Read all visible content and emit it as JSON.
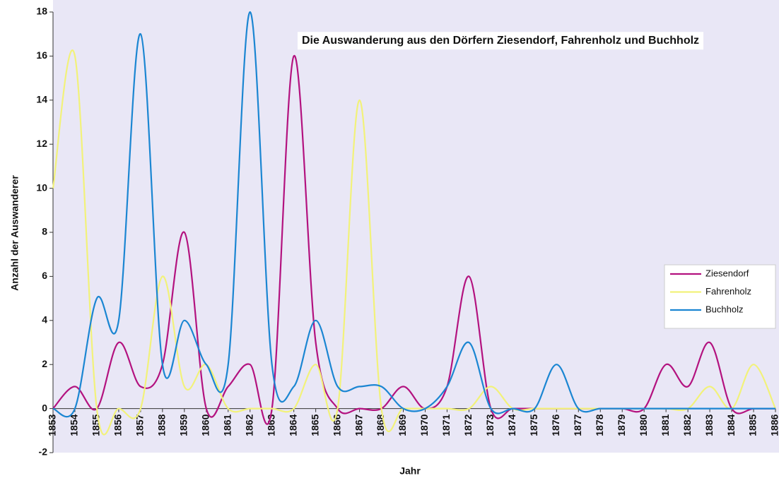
{
  "chart_data": {
    "type": "line",
    "title": "Die Auswanderung aus den Dörfern Ziesendorf, Fahrenholz und Buchholz",
    "x_label": "Jahr",
    "y_label": "Anzahl der Auswanderer",
    "categories": [
      "1853",
      "1854",
      "1855",
      "1856",
      "1857",
      "1858",
      "1859",
      "1860",
      "1861",
      "1862",
      "1863",
      "1864",
      "1865",
      "1866",
      "1867",
      "1868",
      "1869",
      "1870",
      "1871",
      "1872",
      "1873",
      "1874",
      "1875",
      "1876",
      "1877",
      "1878",
      "1879",
      "1880",
      "1881",
      "1882",
      "1883",
      "1884",
      "1885",
      "1886"
    ],
    "series": [
      {
        "name": "Ziesendorf",
        "color": "#b3127f",
        "values": [
          0,
          1,
          0,
          3,
          1,
          2,
          8,
          0,
          1,
          2,
          0,
          16,
          3,
          0,
          0,
          0,
          1,
          0,
          1,
          6,
          0,
          0,
          0,
          0,
          0,
          0,
          0,
          0,
          2,
          1,
          3,
          0,
          0,
          0
        ]
      },
      {
        "name": "Fahrenholz",
        "color": "#f2f27a",
        "values": [
          10,
          16,
          0,
          0,
          0,
          6,
          1,
          2,
          0,
          0,
          0,
          0,
          2,
          0,
          14,
          0,
          0,
          0,
          0,
          0,
          1,
          0,
          0,
          0,
          0,
          0,
          0,
          0,
          0,
          0,
          1,
          0,
          2,
          0
        ]
      },
      {
        "name": "Buchholz",
        "color": "#1b86d2",
        "values": [
          0,
          0,
          5,
          4,
          17,
          2,
          4,
          2,
          2,
          18,
          2,
          1,
          4,
          1,
          1,
          1,
          0,
          0,
          1,
          3,
          0,
          0,
          0,
          2,
          0,
          0,
          0,
          0,
          0,
          0,
          0,
          0,
          0,
          0
        ]
      }
    ],
    "ylim": [
      -2,
      18
    ],
    "yticks": [
      -2,
      0,
      2,
      4,
      6,
      8,
      10,
      12,
      14,
      16,
      18
    ],
    "grid": false,
    "smooth": true,
    "legend": "right"
  }
}
